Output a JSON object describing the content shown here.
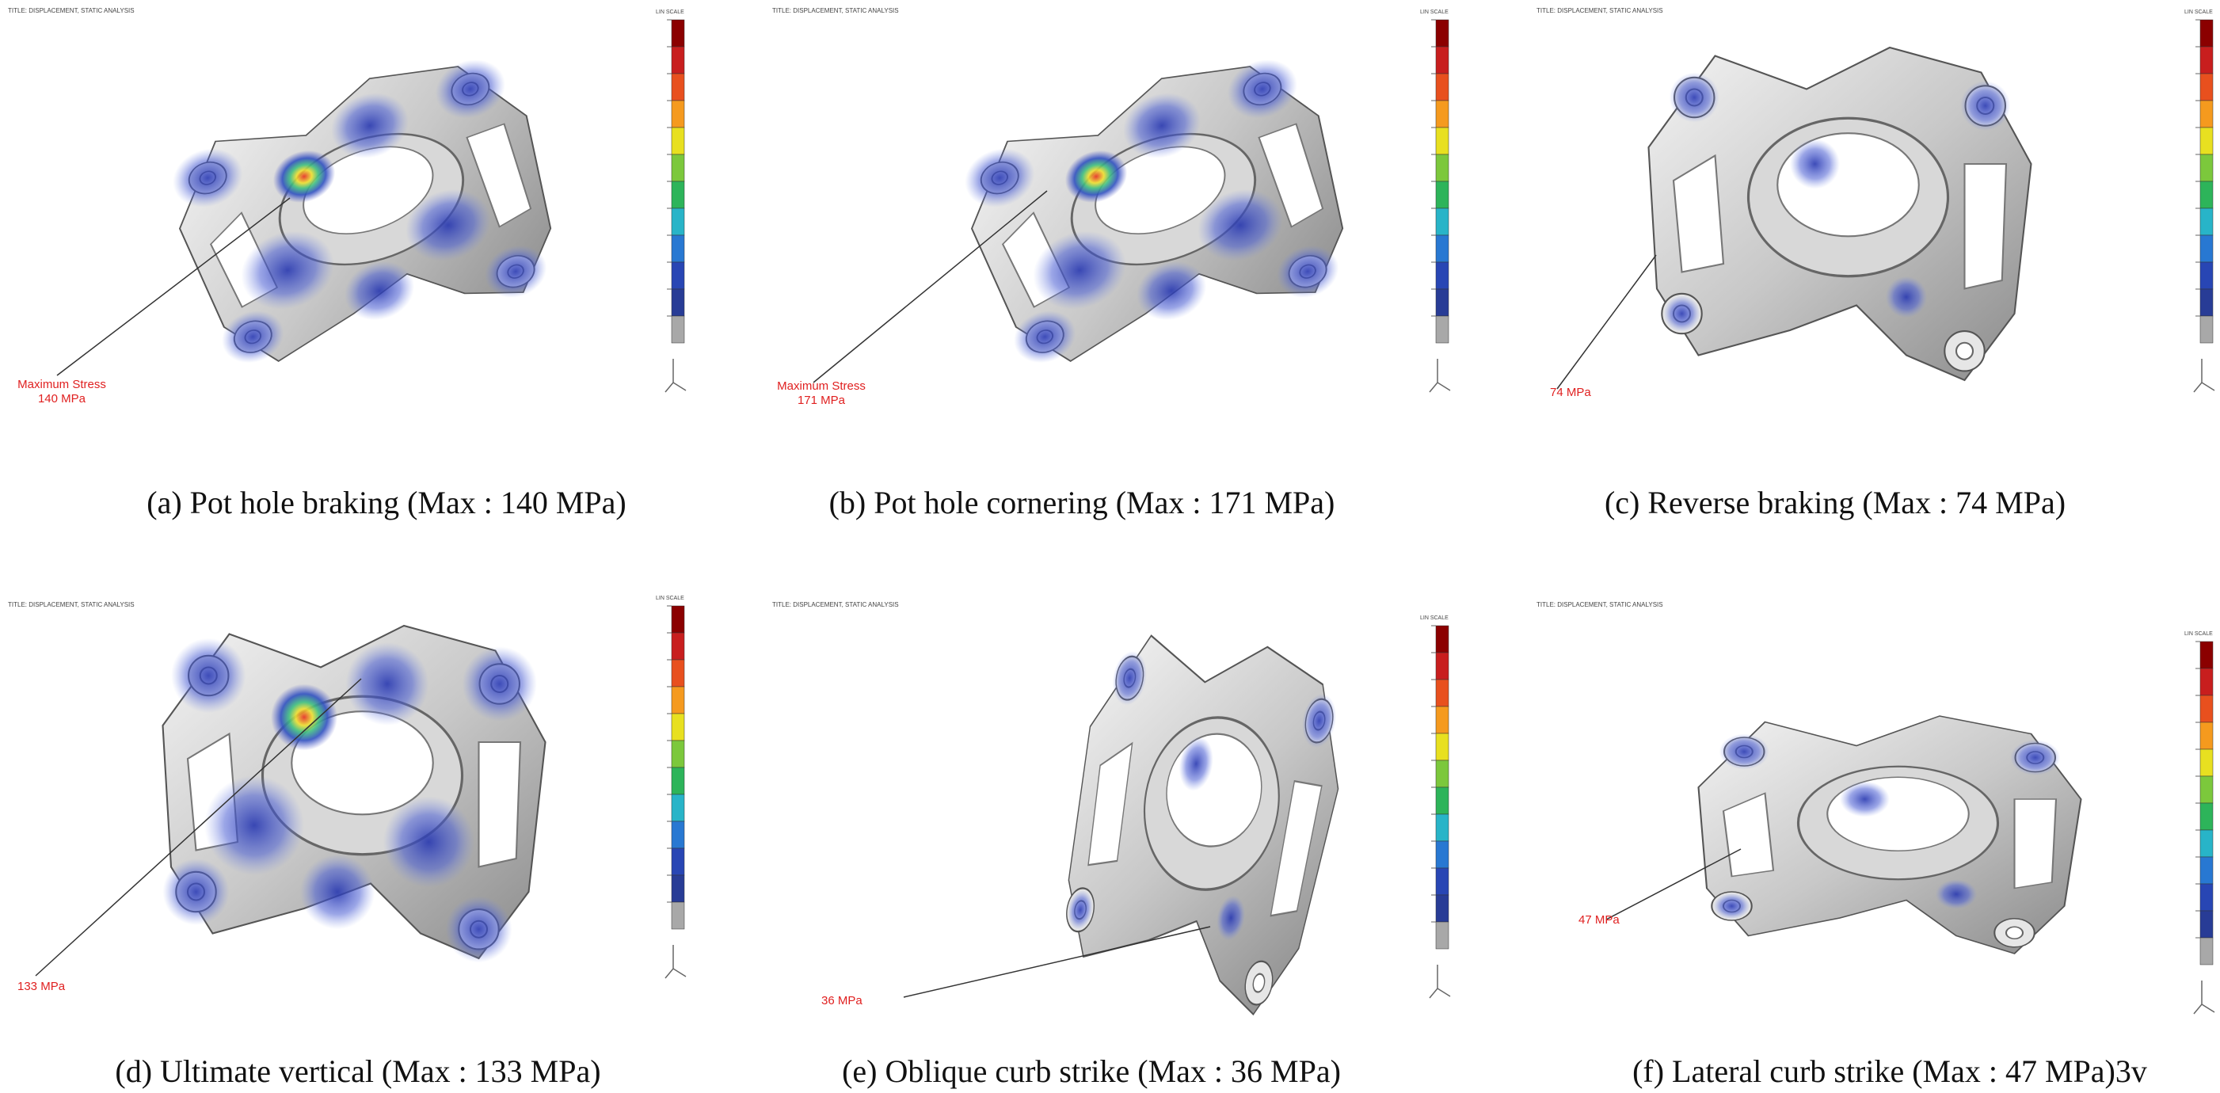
{
  "panels": [
    {
      "header": "TITLE: DISPLACEMENT, STATIC ANALYSIS",
      "scale_title": "LIN SCALE",
      "annotation": [
        "Maximum Stress",
        "140 MPa"
      ],
      "caption": "(a) Pot hole braking (Max : 140 MPa)"
    },
    {
      "header": "TITLE: DISPLACEMENT, STATIC ANALYSIS",
      "scale_title": "LIN SCALE",
      "annotation": [
        "Maximum Stress",
        "171 MPa"
      ],
      "caption": "(b) Pot hole cornering (Max : 171 MPa)"
    },
    {
      "header": "TITLE: DISPLACEMENT, STATIC ANALYSIS",
      "scale_title": "LIN SCALE",
      "annotation": [
        "74 MPa"
      ],
      "caption": "(c) Reverse braking (Max : 74 MPa)"
    },
    {
      "header": "TITLE: DISPLACEMENT, STATIC ANALYSIS",
      "scale_title": "LIN SCALE",
      "annotation": [
        "133 MPa"
      ],
      "caption": "(d) Ultimate vertical (Max : 133 MPa)"
    },
    {
      "header": "TITLE: DISPLACEMENT, STATIC ANALYSIS",
      "scale_title": "LIN SCALE",
      "annotation": [
        "36 MPa"
      ],
      "caption": "(e) Oblique curb strike (Max : 36 MPa)"
    },
    {
      "header": "TITLE: DISPLACEMENT, STATIC ANALYSIS",
      "scale_title": "LIN SCALE",
      "annotation": [
        "47 MPa"
      ],
      "caption": "(f) Lateral curb strike (Max : 47 MPa)3v"
    }
  ]
}
